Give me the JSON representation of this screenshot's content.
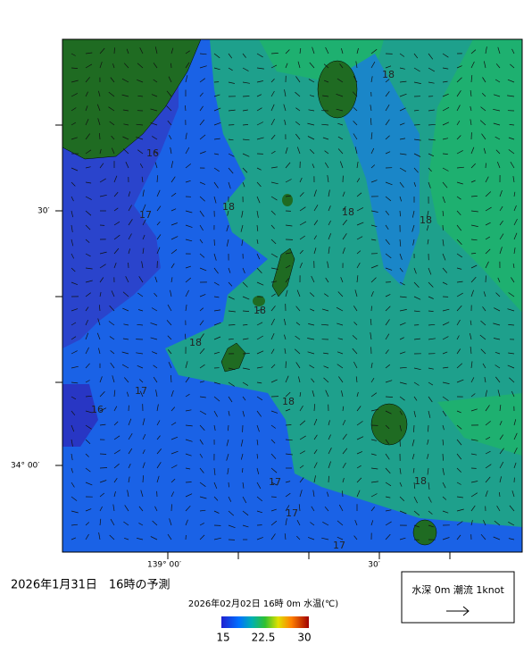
{
  "map": {
    "lat_labels": [
      "30′",
      "34° 00′"
    ],
    "lon_labels": [
      "139° 00′",
      "30′"
    ],
    "contour_labels": [
      18,
      16,
      17,
      18,
      18,
      18,
      18,
      18,
      17,
      18,
      16,
      17,
      17,
      18,
      17
    ]
  },
  "caption": "2026年1月31日　16時の予測",
  "colorbar": {
    "title": "2026年02月02日 16時 0m 水温(℃)",
    "ticks": [
      15,
      22.5,
      30
    ]
  },
  "legend": {
    "label": "水深 0m 潮流 1knot"
  }
}
